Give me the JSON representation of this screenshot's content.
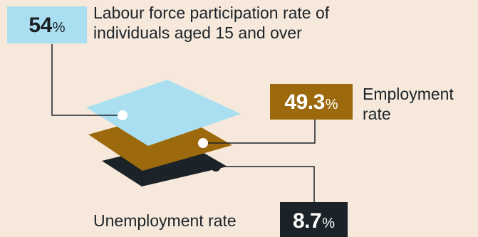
{
  "diagram": {
    "participation": {
      "value": "54",
      "unit": "%",
      "label": "Labour force participation rate of individuals aged 15 and over"
    },
    "employment": {
      "value": "49.3",
      "unit": "%",
      "label_line1": "Employment",
      "label_line2": "rate"
    },
    "unemployment": {
      "value": "8.7",
      "unit": "%",
      "label": "Unemployment rate"
    }
  },
  "colors": {
    "background": "#f6e9dc",
    "participation": "#a9dff0",
    "employment": "#9c6a0c",
    "unemployment": "#1c2328",
    "line": "#1c2328"
  }
}
